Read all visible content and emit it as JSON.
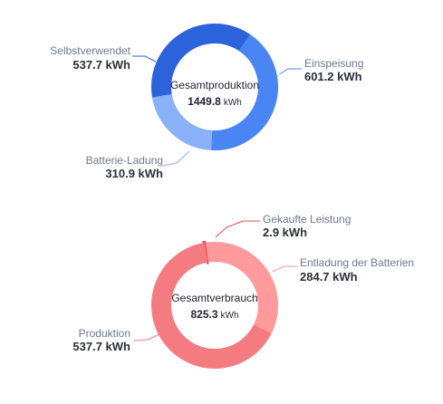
{
  "chart_data": [
    {
      "type": "pie",
      "style": "donut",
      "center_title": "Gesamtproduktion",
      "center_value": "1449.8",
      "center_unit": "kWh",
      "slices": [
        {
          "name": "Einspeisung",
          "value": 601.2,
          "value_label": "601.2 kWh",
          "color": "#4a86f3",
          "label_side": "right"
        },
        {
          "name": "Batterie-Ladung",
          "value": 310.9,
          "value_label": "310.9 kWh",
          "color": "#8ab0f8",
          "label_side": "left"
        },
        {
          "name": "Selbstverwendet",
          "value": 537.7,
          "value_label": "537.7 kWh",
          "color": "#2c63db",
          "label_side": "left"
        }
      ]
    },
    {
      "type": "pie",
      "style": "donut",
      "center_title": "Gesamtverbrauch",
      "center_value": "825.3",
      "center_unit": "kWh",
      "slices": [
        {
          "name": "Gekaufte Leistung",
          "value": 2.9,
          "value_label": "2.9 kWh",
          "color": "#e8484f",
          "label_side": "right"
        },
        {
          "name": "Entladung der Batterien",
          "value": 284.7,
          "value_label": "284.7 kWh",
          "color": "#ff9a9c",
          "label_side": "right"
        },
        {
          "name": "Produktion",
          "value": 537.7,
          "value_label": "537.7 kWh",
          "color": "#f47c80",
          "label_side": "left"
        }
      ]
    }
  ]
}
